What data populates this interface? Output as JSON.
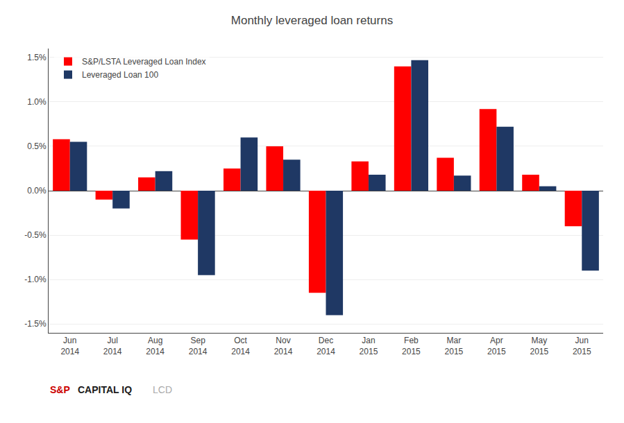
{
  "chart_data": {
    "type": "bar",
    "title": "Monthly leveraged loan returns",
    "categories": [
      "Jun\n2014",
      "Jul\n2014",
      "Aug\n2014",
      "Sep\n2014",
      "Oct\n2014",
      "Nov\n2014",
      "Dec\n2014",
      "Jan\n2015",
      "Feb\n2015",
      "Mar\n2015",
      "Apr\n2015",
      "May\n2015",
      "Jun\n2015"
    ],
    "series": [
      {
        "name": "S&P/LSTA Leveraged Loan Index",
        "color": "#FF0000",
        "values": [
          0.0058,
          -0.001,
          0.0015,
          -0.0055,
          0.0025,
          0.005,
          -0.0115,
          0.0033,
          0.014,
          0.0037,
          0.0092,
          0.0018,
          -0.004
        ]
      },
      {
        "name": "Leveraged Loan 100",
        "color": "#1F3864",
        "values": [
          0.0055,
          -0.002,
          0.0022,
          -0.0095,
          0.006,
          0.0035,
          -0.014,
          0.0018,
          0.0147,
          0.0017,
          0.0072,
          0.0005,
          -0.009
        ]
      }
    ],
    "ylim": [
      -0.016,
      0.016
    ],
    "yticks": [
      {
        "value": -0.015,
        "label": "-1.5%"
      },
      {
        "value": -0.01,
        "label": "-1.0%"
      },
      {
        "value": -0.005,
        "label": "-0.5%"
      },
      {
        "value": 0.0,
        "label": "0.0%"
      },
      {
        "value": 0.005,
        "label": "0.5%"
      },
      {
        "value": 0.01,
        "label": "1.0%"
      },
      {
        "value": 0.015,
        "label": "1.5%"
      }
    ],
    "grid": true,
    "legend": "upper left",
    "annotations": [
      {
        "text": "S&P",
        "color": "#CC0000"
      },
      {
        "text": "CAPITAL IQ",
        "color": "#1a1a1a"
      },
      {
        "text": "LCD",
        "color": "#AAAAAA"
      }
    ]
  }
}
